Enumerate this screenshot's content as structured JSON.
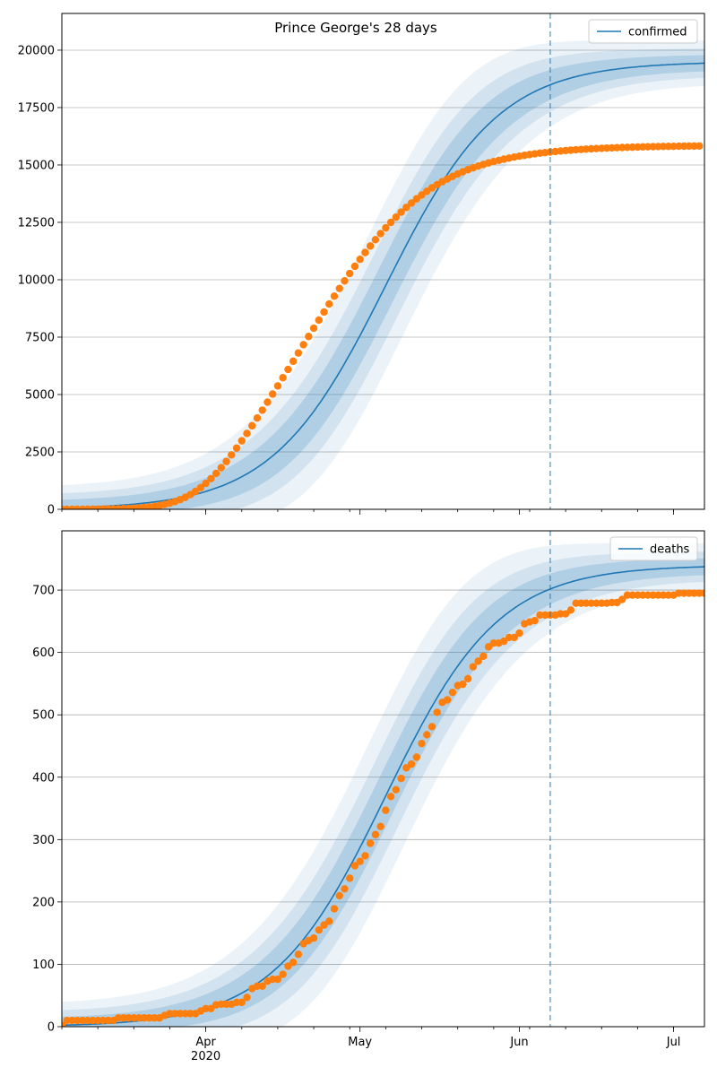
{
  "chart_data": [
    {
      "type": "line",
      "title": "Prince George's 28 days",
      "xlabel": "",
      "ylabel": "",
      "ylim": [
        0,
        21600
      ],
      "yticks": [
        0,
        2500,
        5000,
        7500,
        10000,
        12500,
        15000,
        17500,
        20000
      ],
      "ytick_labels": [
        "0",
        "2500",
        "5000",
        "7500",
        "10000",
        "12500",
        "15000",
        "17500",
        "20000"
      ],
      "grid": "horizontal",
      "legend_placement": "top-right",
      "forecast_start_date": "2020-06-07",
      "colors": {
        "fit": "#1f77b4",
        "observed": "#ff7f0e",
        "band": "#1f77b4",
        "divider": "#1f77b4"
      },
      "series": [
        {
          "name": "confirmed",
          "kind": "fit-line",
          "model": {
            "K": 19500,
            "center": "2020-05-06",
            "scale_days": 11
          }
        },
        {
          "kind": "observed-points",
          "start_date": "2020-03-04",
          "end_date": "2020-07-06",
          "x_step_days": 1,
          "values": [
            2,
            2,
            3,
            3,
            4,
            5,
            6,
            8,
            10,
            13,
            17,
            22,
            29,
            37,
            48,
            62,
            80,
            102,
            131,
            167,
            212,
            268,
            337,
            421,
            522,
            642,
            782,
            944,
            1129,
            1336,
            1565,
            1815,
            2084,
            2370,
            2670,
            2983,
            3306,
            3638,
            3976,
            4320,
            4668,
            5020,
            5375,
            5732,
            6091,
            6450,
            6810,
            7170,
            7529,
            7887,
            8242,
            8594,
            8942,
            9284,
            9621,
            9950,
            10272,
            10586,
            10891,
            11186,
            11470,
            11745,
            12008,
            12260,
            12500,
            12728,
            12944,
            13149,
            13342,
            13524,
            13694,
            13854,
            14003,
            14143,
            14272,
            14393,
            14505,
            14609,
            14705,
            14794,
            14877,
            14953,
            15023,
            15088,
            15147,
            15202,
            15253,
            15300,
            15343,
            15383,
            15419,
            15453,
            15484,
            15513,
            15539,
            15564,
            15586,
            15607,
            15626,
            15644,
            15660,
            15675,
            15689,
            15702,
            15714,
            15725,
            15735,
            15744,
            15753,
            15761,
            15768,
            15775,
            15781,
            15787,
            15792,
            15797,
            15802,
            15806,
            15810,
            15813,
            15816,
            15819,
            15822,
            15824,
            15827
          ],
          "note": ""
        }
      ],
      "x_axis": {
        "start": "2020-03-04",
        "end": "2020-07-07",
        "major_ticks": []
      }
    },
    {
      "type": "line",
      "title": "",
      "xlabel": "",
      "ylabel": "",
      "ylim": [
        0,
        795
      ],
      "yticks": [
        0,
        100,
        200,
        300,
        400,
        500,
        600,
        700
      ],
      "ytick_labels": [
        "0",
        "100",
        "200",
        "300",
        "400",
        "500",
        "600",
        "700"
      ],
      "grid": "horizontal",
      "legend_placement": "top-right",
      "forecast_start_date": "2020-06-07",
      "colors": {
        "fit": "#1f77b4",
        "observed": "#ff7f0e",
        "band": "#1f77b4",
        "divider": "#1f77b4"
      },
      "series": [
        {
          "name": "deaths",
          "kind": "fit-line",
          "model": {
            "K": 740,
            "center": "2020-05-06",
            "scale_days": 11
          }
        }
      ],
      "x_axis": {
        "start": "2020-03-04",
        "end": "2020-07-07",
        "major_ticks": [
          {
            "date": "2020-04-01",
            "label": "Apr",
            "sublabel": "2020"
          },
          {
            "date": "2020-05-01",
            "label": "May",
            "sublabel": ""
          },
          {
            "date": "2020-06-01",
            "label": "Jun",
            "sublabel": ""
          },
          {
            "date": "2020-07-01",
            "label": "Jul",
            "sublabel": ""
          }
        ]
      }
    }
  ]
}
